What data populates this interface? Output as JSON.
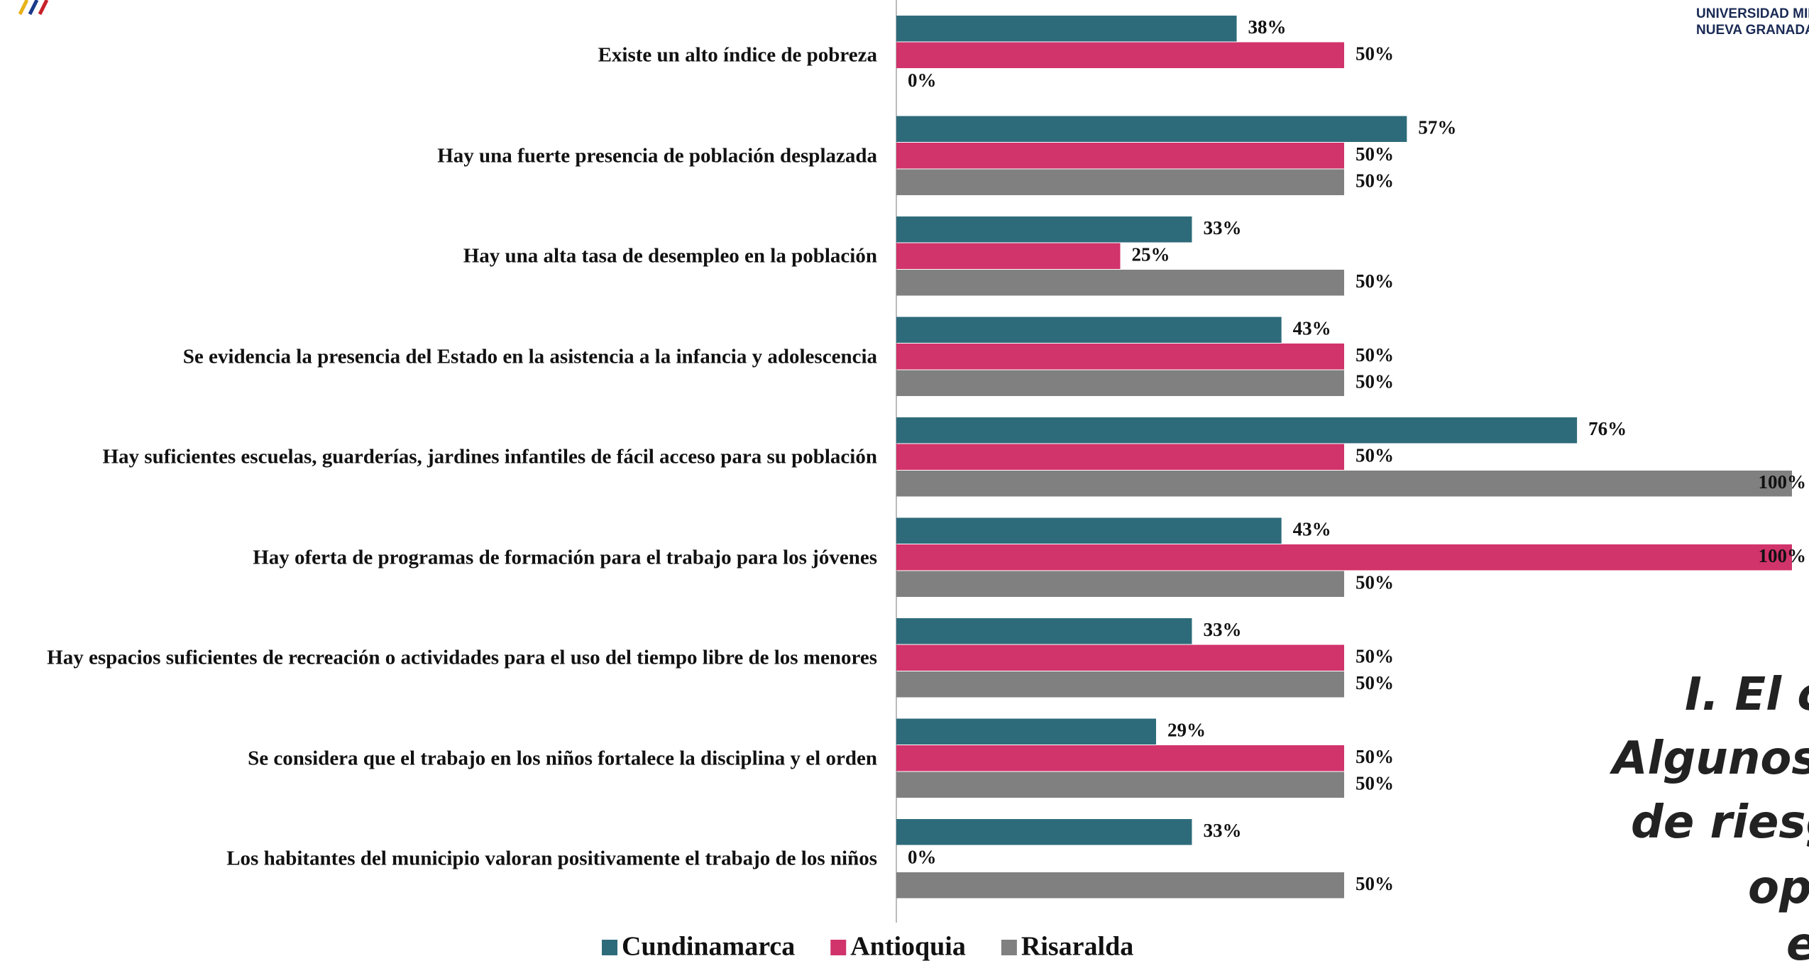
{
  "chart_data": {
    "type": "bar",
    "orientation": "horizontal",
    "categories": [
      "Existe un alto índice de pobreza",
      "Hay una fuerte presencia de población desplazada",
      "Hay una alta tasa de desempleo en la población",
      "Se evidencia la presencia del Estado en la asistencia a la infancia y adolescencia",
      "Hay suficientes escuelas, guarderías, jardines infantiles de fácil acceso para su población",
      "Hay oferta de programas de formación para el trabajo para los jóvenes",
      "Hay espacios suficientes de recreación o actividades para el uso del tiempo libre de los menores",
      "Se considera que el trabajo en los niños  fortalece la disciplina y el orden",
      "Los habitantes del municipio valoran positivamente el trabajo de los niños"
    ],
    "series": [
      {
        "name": "Cundinamarca",
        "color": "#2e6b7a",
        "values": [
          38,
          57,
          33,
          43,
          76,
          43,
          33,
          29,
          33
        ],
        "value_labels": [
          "38%",
          "57%",
          "33%",
          "43%",
          "76%",
          "43%",
          "33%",
          "29%",
          "33%"
        ]
      },
      {
        "name": "Antioquia",
        "color": "#d1336b",
        "values": [
          50,
          50,
          25,
          50,
          50,
          100,
          50,
          50,
          0
        ],
        "value_labels": [
          "50%",
          "50%",
          "25%",
          "50%",
          "50%",
          "100%",
          "50%",
          "50%",
          "0%"
        ]
      },
      {
        "name": "Risaralda",
        "color": "#808080",
        "values": [
          0,
          50,
          50,
          50,
          100,
          50,
          50,
          50,
          50
        ],
        "value_labels": [
          "0%",
          "50%",
          "50%",
          "50%",
          "100%",
          "50%",
          "50%",
          "50%",
          "50%"
        ]
      }
    ],
    "xlim": [
      0,
      100
    ],
    "legend": "bottom"
  },
  "logo": {
    "line1": "UNIVERSIDAD MILITA",
    "line2": "NUEVA GRANADA"
  },
  "side_text": [
    "I. El co",
    "Algunos f",
    "de riesgo",
    "op",
    "e"
  ]
}
